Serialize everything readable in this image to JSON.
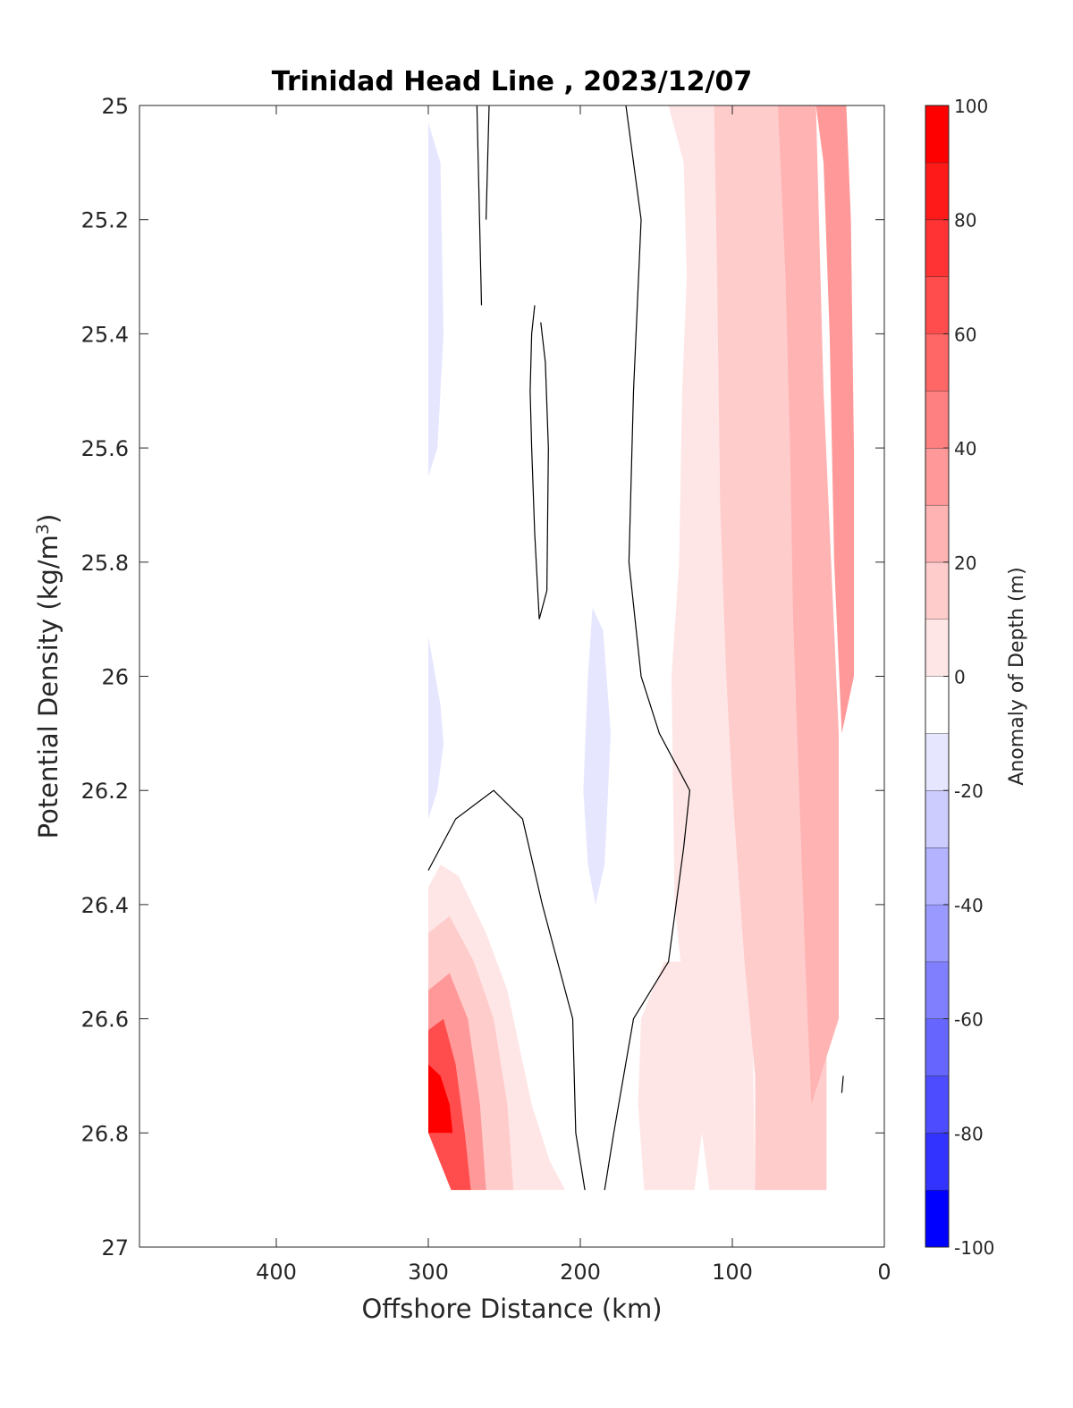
{
  "chart_data": {
    "type": "contour",
    "title": "Trinidad Head Line , 2023/12/07",
    "xlabel": "Offshore Distance (km)",
    "ylabel_main": "Potential Density (kg/m",
    "ylabel_sup": "3",
    "ylabel_close": ")",
    "xlim": [
      490,
      0
    ],
    "x_reversed": true,
    "ylim": [
      25,
      27
    ],
    "y_reversed": true,
    "x_ticks": [
      {
        "value": 400,
        "label": "400"
      },
      {
        "value": 300,
        "label": "300"
      },
      {
        "value": 200,
        "label": "200"
      },
      {
        "value": 100,
        "label": "100"
      },
      {
        "value": 0,
        "label": "0"
      }
    ],
    "y_ticks": [
      {
        "value": 25.0,
        "label": "25"
      },
      {
        "value": 25.2,
        "label": "25.2"
      },
      {
        "value": 25.4,
        "label": "25.4"
      },
      {
        "value": 25.6,
        "label": "25.6"
      },
      {
        "value": 25.8,
        "label": "25.8"
      },
      {
        "value": 26.0,
        "label": "26"
      },
      {
        "value": 26.2,
        "label": "26.2"
      },
      {
        "value": 26.4,
        "label": "26.4"
      },
      {
        "value": 26.6,
        "label": "26.6"
      },
      {
        "value": 26.8,
        "label": "26.8"
      },
      {
        "value": 27.0,
        "label": "27"
      }
    ],
    "colorbar": {
      "label": "Anomaly of Depth (m)",
      "range": [
        -100,
        100
      ],
      "step": 10,
      "ticks": [
        {
          "value": 100,
          "label": "100"
        },
        {
          "value": 80,
          "label": "80"
        },
        {
          "value": 60,
          "label": "60"
        },
        {
          "value": 40,
          "label": "40"
        },
        {
          "value": 20,
          "label": "20"
        },
        {
          "value": 0,
          "label": "0"
        },
        {
          "value": -20,
          "label": "-20"
        },
        {
          "value": -40,
          "label": "-40"
        },
        {
          "value": -60,
          "label": "-60"
        },
        {
          "value": -80,
          "label": "-80"
        },
        {
          "value": -100,
          "label": "-100"
        }
      ],
      "colors": {
        "90": "#ff0000",
        "80": "#ff1a1a",
        "70": "#ff3333",
        "60": "#ff4d4d",
        "50": "#ff6666",
        "40": "#ff8080",
        "30": "#ff9999",
        "20": "#ffb3b3",
        "10": "#ffcccc",
        "0": "#ffe6e6",
        "-10": "#ffffff",
        "-20": "#e6e6ff",
        "-30": "#ccccff",
        "-40": "#b3b3ff",
        "-50": "#9999ff",
        "-60": "#8080ff",
        "-70": "#6666ff",
        "-80": "#4d4dff",
        "-90": "#3333ff",
        "-100": "#1a1aff"
      }
    },
    "filled_regions": [
      {
        "level": -10,
        "desc": "weak negative, offshore edge",
        "points": [
          [
            300,
            25.0
          ],
          [
            279,
            25.0
          ],
          [
            279,
            25.3
          ],
          [
            280,
            25.9
          ],
          [
            278,
            26.0
          ],
          [
            278,
            26.1
          ],
          [
            287,
            26.2
          ],
          [
            300,
            26.3
          ]
        ]
      },
      {
        "level": -20,
        "desc": "offshore edge core",
        "points": [
          [
            300,
            25.03
          ],
          [
            292,
            25.1
          ],
          [
            290,
            25.4
          ],
          [
            294,
            25.6
          ],
          [
            300,
            25.65
          ]
        ]
      },
      {
        "level": -20,
        "desc": "offshore edge lower core",
        "points": [
          [
            300,
            25.93
          ],
          [
            292,
            26.05
          ],
          [
            290,
            26.12
          ],
          [
            294,
            26.2
          ],
          [
            300,
            26.25
          ]
        ]
      },
      {
        "level": -10,
        "desc": "middle negative tongue",
        "points": [
          [
            190,
            25.29
          ],
          [
            200,
            25.3
          ],
          [
            205,
            25.5
          ],
          [
            208,
            25.8
          ],
          [
            205,
            26.1
          ],
          [
            200,
            26.4
          ],
          [
            196,
            26.55
          ],
          [
            188,
            26.57
          ],
          [
            175,
            26.4
          ],
          [
            168,
            26.2
          ],
          [
            170,
            26.0
          ],
          [
            178,
            25.7
          ],
          [
            180,
            25.4
          ]
        ]
      },
      {
        "level": -20,
        "desc": "middle negative core",
        "points": [
          [
            192,
            25.88
          ],
          [
            195,
            26.0
          ],
          [
            198,
            26.2
          ],
          [
            195,
            26.33
          ],
          [
            190,
            26.4
          ],
          [
            184,
            26.33
          ],
          [
            180,
            26.1
          ],
          [
            185,
            25.92
          ]
        ]
      },
      {
        "level": 0,
        "desc": "nearshore weak positive",
        "points": [
          [
            142,
            25.0
          ],
          [
            90,
            25.0
          ],
          [
            85,
            25.7
          ],
          [
            88,
            26.0
          ],
          [
            88,
            26.4
          ],
          [
            85,
            26.9
          ],
          [
            115,
            26.9
          ],
          [
            130,
            26.6
          ],
          [
            138,
            26.4
          ],
          [
            140,
            26.0
          ],
          [
            135,
            25.8
          ],
          [
            133,
            25.5
          ],
          [
            130,
            25.3
          ],
          [
            132,
            25.1
          ]
        ]
      },
      {
        "level": 10,
        "desc": "nearshore moderate positive",
        "points": [
          [
            112,
            25.0
          ],
          [
            60,
            25.0
          ],
          [
            45,
            25.5
          ],
          [
            38,
            26.0
          ],
          [
            38,
            26.9
          ],
          [
            85,
            26.9
          ],
          [
            85,
            26.7
          ],
          [
            92,
            26.5
          ],
          [
            100,
            26.2
          ],
          [
            104,
            26.0
          ],
          [
            108,
            25.7
          ],
          [
            110,
            25.3
          ]
        ]
      },
      {
        "level": 20,
        "desc": "nearshore strong positive",
        "points": [
          [
            70,
            25.0
          ],
          [
            45,
            25.0
          ],
          [
            40,
            25.5
          ],
          [
            30,
            26.1
          ],
          [
            30,
            26.6
          ],
          [
            48,
            26.75
          ],
          [
            52,
            26.5
          ],
          [
            56,
            26.2
          ],
          [
            60,
            25.9
          ],
          [
            62,
            25.6
          ],
          [
            65,
            25.3
          ]
        ]
      },
      {
        "level": 30,
        "desc": "nearshore core",
        "points": [
          [
            45,
            25.0
          ],
          [
            25,
            25.0
          ],
          [
            22,
            25.2
          ],
          [
            20,
            25.6
          ],
          [
            20,
            26.0
          ],
          [
            28,
            26.1
          ],
          [
            33,
            25.8
          ],
          [
            36,
            25.4
          ],
          [
            40,
            25.1
          ]
        ]
      },
      {
        "level": 0,
        "desc": "deep offshore positive band",
        "points": [
          [
            300,
            26.37
          ],
          [
            292,
            26.33
          ],
          [
            280,
            26.35
          ],
          [
            262,
            26.45
          ],
          [
            248,
            26.55
          ],
          [
            240,
            26.65
          ],
          [
            232,
            26.75
          ],
          [
            220,
            26.85
          ],
          [
            210,
            26.9
          ],
          [
            260,
            26.9
          ],
          [
            300,
            26.8
          ]
        ]
      },
      {
        "level": 10,
        "desc": "deep offshore moderate",
        "points": [
          [
            300,
            26.45
          ],
          [
            286,
            26.42
          ],
          [
            270,
            26.5
          ],
          [
            257,
            26.6
          ],
          [
            248,
            26.75
          ],
          [
            244,
            26.9
          ],
          [
            262,
            26.9
          ],
          [
            300,
            26.8
          ]
        ]
      },
      {
        "level": 30,
        "desc": "deep offshore strong",
        "points": [
          [
            300,
            26.55
          ],
          [
            286,
            26.52
          ],
          [
            274,
            26.6
          ],
          [
            266,
            26.75
          ],
          [
            262,
            26.9
          ],
          [
            272,
            26.9
          ],
          [
            300,
            26.8
          ]
        ]
      },
      {
        "level": 60,
        "desc": "deep offshore very strong",
        "points": [
          [
            300,
            26.62
          ],
          [
            290,
            26.6
          ],
          [
            282,
            26.68
          ],
          [
            276,
            26.8
          ],
          [
            272,
            26.9
          ],
          [
            285,
            26.9
          ],
          [
            300,
            26.8
          ]
        ]
      },
      {
        "level": 90,
        "desc": "deep offshore max",
        "points": [
          [
            300,
            26.68
          ],
          [
            292,
            26.7
          ],
          [
            286,
            26.75
          ],
          [
            284,
            26.8
          ],
          [
            300,
            26.8
          ]
        ]
      },
      {
        "level": 0,
        "desc": "deep middle positive patch",
        "points": [
          [
            160,
            26.6
          ],
          [
            145,
            26.5
          ],
          [
            128,
            26.5
          ],
          [
            120,
            26.6
          ],
          [
            115,
            26.7
          ],
          [
            125,
            26.9
          ],
          [
            158,
            26.9
          ],
          [
            162,
            26.75
          ]
        ]
      }
    ],
    "contour_lines_zero": [
      [
        [
          268,
          25.0
        ],
        [
          265,
          25.35
        ]
      ],
      [
        [
          260,
          25.0
        ],
        [
          262,
          25.2
        ]
      ],
      [
        [
          230,
          25.35
        ],
        [
          232,
          25.4
        ],
        [
          233,
          25.5
        ],
        [
          232,
          25.6
        ],
        [
          230,
          25.75
        ],
        [
          227,
          25.9
        ],
        [
          222,
          25.85
        ],
        [
          221,
          25.6
        ],
        [
          223,
          25.45
        ],
        [
          226,
          25.38
        ]
      ],
      [
        [
          170,
          25.0
        ],
        [
          160,
          25.2
        ],
        [
          165,
          25.5
        ],
        [
          168,
          25.8
        ],
        [
          160,
          26.0
        ],
        [
          148,
          26.1
        ],
        [
          128,
          26.2
        ],
        [
          132,
          26.3
        ],
        [
          142,
          26.5
        ],
        [
          165,
          26.6
        ],
        [
          178,
          26.8
        ],
        [
          184,
          26.9
        ]
      ],
      [
        [
          300,
          26.34
        ],
        [
          282,
          26.25
        ],
        [
          257,
          26.2
        ],
        [
          238,
          26.25
        ],
        [
          225,
          26.4
        ],
        [
          205,
          26.6
        ],
        [
          203,
          26.8
        ],
        [
          197,
          26.9
        ]
      ],
      [
        [
          27,
          26.7
        ],
        [
          28,
          26.73
        ]
      ]
    ]
  }
}
